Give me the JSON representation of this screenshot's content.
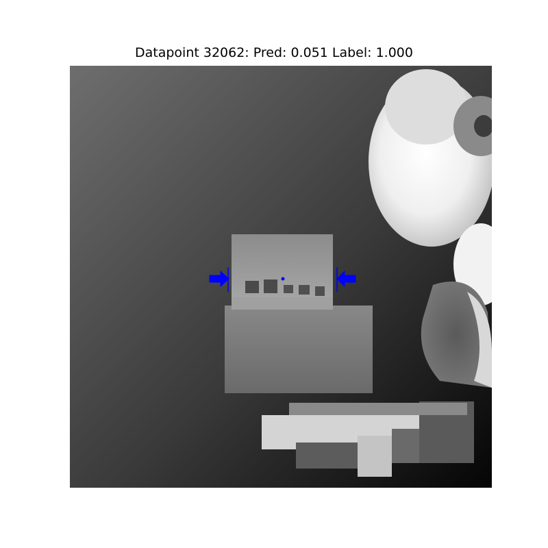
{
  "title": "Datapoint 32062: Pred: 0.051 Label: 1.000",
  "image": {
    "kind": "grayscale depth image",
    "objects": [
      "box with dark squares",
      "round white object",
      "bottle-like object",
      "flat object lower right"
    ]
  },
  "grasp_marker": {
    "color": "#0000ff",
    "icon": "blue-arrows-grasp-marker"
  }
}
